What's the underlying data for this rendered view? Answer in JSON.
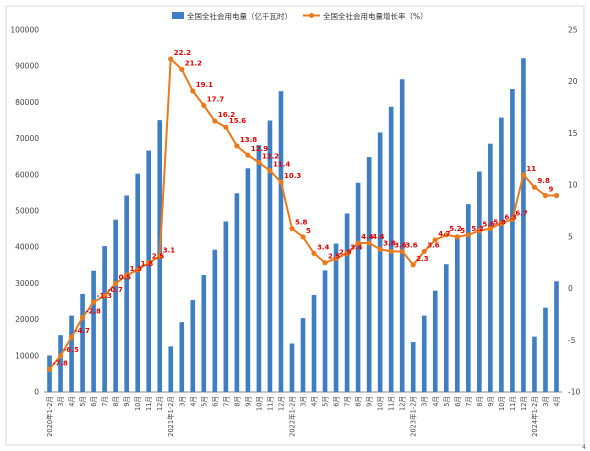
{
  "colors": {
    "bar": "#3f7ec2",
    "line": "#ea7a1e",
    "label": "#e00000",
    "grid": "#e6e6e6",
    "axis": "#888888"
  },
  "chart_data": {
    "type": "bar+line",
    "categories": [
      "2020年1-2月",
      "3月",
      "4月",
      "5月",
      "6月",
      "7月",
      "8月",
      "9月",
      "10月",
      "11月",
      "12月",
      "2021年1-2月",
      "3月",
      "4月",
      "5月",
      "6月",
      "7月",
      "8月",
      "9月",
      "10月",
      "11月",
      "12月",
      "2022年1-2月",
      "3月",
      "4月",
      "5月",
      "6月",
      "7月",
      "8月",
      "9月",
      "10月",
      "11月",
      "12月",
      "2023年1-2月",
      "3月",
      "4月",
      "5月",
      "6月",
      "7月",
      "8月",
      "9月",
      "10月",
      "11月",
      "12月",
      "2024年1-2月",
      "3月",
      "4月"
    ],
    "series": [
      {
        "name": "全国全社会用电量（亿千瓦时）",
        "type": "bar",
        "axis": "left",
        "values": [
          10100,
          15700,
          21100,
          27100,
          33500,
          40300,
          47600,
          54300,
          60300,
          66700,
          75100,
          12600,
          19300,
          25400,
          32300,
          39300,
          47100,
          54900,
          61800,
          68200,
          75000,
          83100,
          13400,
          20400,
          26800,
          33600,
          41000,
          49300,
          57800,
          64900,
          71700,
          78800,
          86400,
          13800,
          21100,
          28000,
          35300,
          43000,
          51900,
          60900,
          68600,
          75800,
          83700,
          92200,
          15300,
          23300,
          30600
        ]
      },
      {
        "name": "全国全社会用电量增长率（%）",
        "type": "line",
        "axis": "right",
        "values": [
          -7.8,
          -6.5,
          -4.7,
          -2.8,
          -1.3,
          -0.7,
          0.5,
          1.3,
          1.8,
          2.5,
          3.1,
          22.2,
          21.2,
          19.1,
          17.7,
          16.2,
          15.6,
          13.8,
          12.9,
          12.2,
          11.4,
          10.3,
          5.8,
          5.0,
          3.4,
          2.5,
          2.9,
          3.4,
          4.4,
          4.4,
          3.8,
          3.6,
          3.6,
          2.3,
          3.6,
          4.7,
          5.2,
          5.0,
          5.2,
          5.6,
          5.8,
          6.3,
          6.7,
          11.0,
          9.8,
          9.0,
          9.0
        ],
        "labels": [
          "-7.8",
          "-6.5",
          "-4.7",
          "-2.8",
          "-1.3",
          "-0.7",
          "0.5",
          "1.3",
          "1.8",
          "2.5",
          "3.1",
          "22.2",
          "21.2",
          "19.1",
          "17.7",
          "16.2",
          "15.6",
          "13.8",
          "12.9",
          "12.2",
          "11.4",
          "10.3",
          "5.8",
          "5",
          "3.4",
          "2.5",
          "2.9",
          "3.4",
          "4.4",
          "4.4",
          "3.8",
          "3.6",
          "3.6",
          "2.3",
          "3.6",
          "4.7",
          "5.2",
          "5",
          "5.2",
          "5.6",
          "5.8",
          "6.3",
          "6.7",
          "11",
          "9.8",
          "9",
          ""
        ]
      }
    ],
    "y_left": {
      "min": 0,
      "max": 100000,
      "ticks": [
        0,
        10000,
        20000,
        30000,
        40000,
        50000,
        60000,
        70000,
        80000,
        90000,
        100000
      ]
    },
    "y_right": {
      "min": -10,
      "max": 25,
      "ticks": [
        -10,
        -5,
        0,
        5,
        10,
        15,
        20,
        25
      ]
    },
    "legend_position": "top-center",
    "grid": false,
    "title": "",
    "xlabel": "",
    "ylabel": ""
  }
}
